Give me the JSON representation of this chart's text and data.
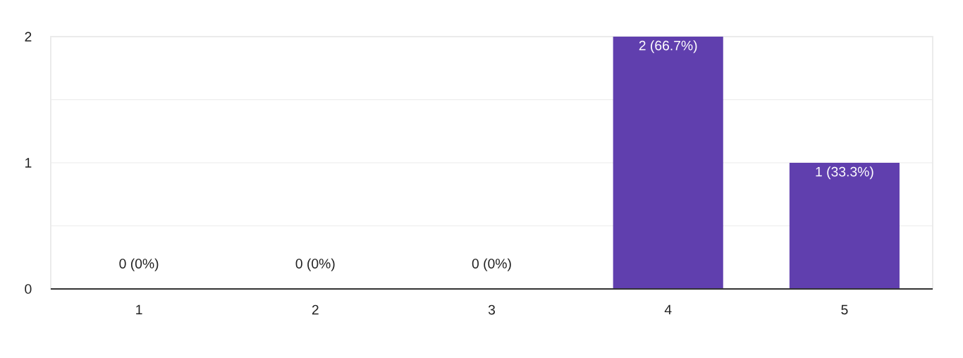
{
  "chart_data": {
    "type": "bar",
    "categories": [
      "1",
      "2",
      "3",
      "4",
      "5"
    ],
    "values": [
      0,
      0,
      0,
      2,
      1
    ],
    "value_labels": [
      "0 (0%)",
      "0 (0%)",
      "0 (0%)",
      "2 (66.7%)",
      "1 (33.3%)"
    ],
    "color": "#603fae",
    "ylim": [
      0,
      2
    ],
    "yticks": [
      0,
      {
        "value": 0.5,
        "label": null
      },
      1,
      {
        "value": 1.5,
        "label": null
      },
      2
    ],
    "grid": "y"
  }
}
